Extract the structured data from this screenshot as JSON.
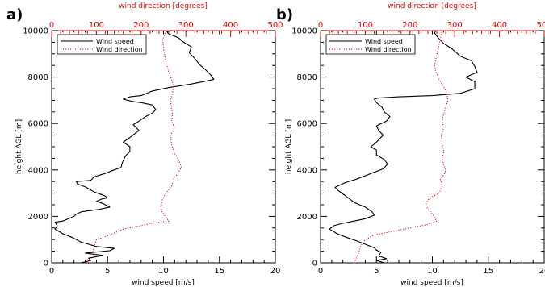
{
  "colors": {
    "speed": "#000000",
    "direction": "#e00000"
  },
  "chart_data": [
    {
      "type": "line",
      "panel_label": "a)",
      "xlabel": "wind speed [m/s]",
      "ylabel": "height AGL [m]",
      "top_xlabel": "wind direction [degrees]",
      "xlim": [
        0,
        20
      ],
      "ylim": [
        0,
        10000
      ],
      "top_xlim": [
        0,
        500
      ],
      "x_ticks": [
        "0",
        "5",
        "10",
        "15",
        "20"
      ],
      "y_ticks": [
        "0",
        "2000",
        "4000",
        "6000",
        "8000",
        "10000"
      ],
      "top_ticks": [
        "0",
        "100",
        "200",
        "300",
        "400",
        "500"
      ],
      "legend": {
        "position": "top-left",
        "entries": [
          "Wind speed",
          "Wind direction"
        ]
      },
      "series": [
        {
          "name": "Wind speed",
          "style": "solid",
          "axis": "bottom",
          "points": [
            [
              2.6,
              0
            ],
            [
              3.5,
              100
            ],
            [
              3.3,
              200
            ],
            [
              4.6,
              320
            ],
            [
              3.0,
              420
            ],
            [
              5.2,
              520
            ],
            [
              5.6,
              620
            ],
            [
              4.0,
              700
            ],
            [
              3.3,
              800
            ],
            [
              2.6,
              900
            ],
            [
              2.2,
              1000
            ],
            [
              1.8,
              1100
            ],
            [
              1.0,
              1250
            ],
            [
              0.3,
              1450
            ],
            [
              0.5,
              1600
            ],
            [
              0.3,
              1750
            ],
            [
              1.0,
              1800
            ],
            [
              1.5,
              1900
            ],
            [
              2.0,
              2000
            ],
            [
              2.2,
              2100
            ],
            [
              2.7,
              2200
            ],
            [
              4.2,
              2300
            ],
            [
              5.2,
              2400
            ],
            [
              4.6,
              2550
            ],
            [
              4.0,
              2650
            ],
            [
              4.5,
              2750
            ],
            [
              5.0,
              2800
            ],
            [
              4.7,
              2900
            ],
            [
              3.8,
              3050
            ],
            [
              3.1,
              3250
            ],
            [
              2.3,
              3400
            ],
            [
              2.2,
              3500
            ],
            [
              3.5,
              3550
            ],
            [
              3.8,
              3700
            ],
            [
              4.8,
              3850
            ],
            [
              5.3,
              3950
            ],
            [
              6.2,
              4100
            ],
            [
              6.3,
              4300
            ],
            [
              6.5,
              4500
            ],
            [
              6.6,
              4600
            ],
            [
              7.0,
              4800
            ],
            [
              7.0,
              5000
            ],
            [
              6.4,
              5200
            ],
            [
              7.0,
              5400
            ],
            [
              7.4,
              5550
            ],
            [
              7.8,
              5700
            ],
            [
              7.3,
              5950
            ],
            [
              7.8,
              6100
            ],
            [
              8.4,
              6300
            ],
            [
              9.0,
              6450
            ],
            [
              9.3,
              6600
            ],
            [
              9.0,
              6800
            ],
            [
              8.0,
              6900
            ],
            [
              7.2,
              6950
            ],
            [
              6.4,
              7050
            ],
            [
              7.0,
              7150
            ],
            [
              8.0,
              7200
            ],
            [
              9.0,
              7400
            ],
            [
              10.5,
              7550
            ],
            [
              12.5,
              7700
            ],
            [
              13.5,
              7800
            ],
            [
              14.5,
              7900
            ],
            [
              14.2,
              8100
            ],
            [
              13.8,
              8300
            ],
            [
              13.2,
              8550
            ],
            [
              12.8,
              8800
            ],
            [
              12.3,
              9050
            ],
            [
              12.5,
              9300
            ],
            [
              11.8,
              9500
            ],
            [
              11.3,
              9700
            ],
            [
              10.5,
              9850
            ],
            [
              10.3,
              9950
            ],
            [
              10.8,
              10000
            ]
          ]
        },
        {
          "name": "Wind direction",
          "style": "dotted",
          "axis": "top",
          "points": [
            [
              80,
              0
            ],
            [
              85,
              150
            ],
            [
              88,
              300
            ],
            [
              92,
              500
            ],
            [
              95,
              700
            ],
            [
              100,
              1000
            ],
            [
              130,
              1200
            ],
            [
              160,
              1450
            ],
            [
              200,
              1600
            ],
            [
              225,
              1700
            ],
            [
              262,
              1800
            ],
            [
              258,
              1900
            ],
            [
              252,
              2050
            ],
            [
              246,
              2200
            ],
            [
              244,
              2400
            ],
            [
              246,
              2550
            ],
            [
              248,
              2750
            ],
            [
              255,
              3000
            ],
            [
              268,
              3300
            ],
            [
              272,
              3600
            ],
            [
              282,
              3850
            ],
            [
              290,
              4100
            ],
            [
              285,
              4400
            ],
            [
              275,
              4700
            ],
            [
              268,
              5100
            ],
            [
              265,
              5500
            ],
            [
              275,
              5800
            ],
            [
              268,
              6100
            ],
            [
              270,
              6400
            ],
            [
              268,
              6700
            ],
            [
              265,
              7000
            ],
            [
              270,
              7300
            ],
            [
              272,
              7600
            ],
            [
              268,
              7900
            ],
            [
              262,
              8200
            ],
            [
              256,
              8600
            ],
            [
              252,
              9000
            ],
            [
              250,
              9300
            ],
            [
              248,
              9600
            ],
            [
              252,
              9800
            ],
            [
              255,
              10000
            ]
          ]
        }
      ]
    },
    {
      "type": "line",
      "panel_label": "b)",
      "xlabel": "wind speed [m/s]",
      "ylabel": "height AGL [m]",
      "top_xlabel": "wind direction [degrees]",
      "xlim": [
        0,
        20
      ],
      "ylim": [
        0,
        10000
      ],
      "top_xlim": [
        0,
        500
      ],
      "x_ticks": [
        "0",
        "5",
        "10",
        "15",
        "20"
      ],
      "y_ticks": [
        "0",
        "2000",
        "4000",
        "6000",
        "8000",
        "10000"
      ],
      "top_ticks": [
        "0",
        "100",
        "200",
        "300",
        "400",
        "500"
      ],
      "legend": {
        "position": "top-left",
        "entries": [
          "Wind speed",
          "Wind direction"
        ]
      },
      "series": [
        {
          "name": "Wind speed",
          "style": "solid",
          "axis": "bottom",
          "points": [
            [
              5.7,
              0
            ],
            [
              5.0,
              100
            ],
            [
              5.9,
              180
            ],
            [
              5.2,
              300
            ],
            [
              5.4,
              450
            ],
            [
              5.0,
              550
            ],
            [
              4.8,
              650
            ],
            [
              4.0,
              800
            ],
            [
              3.2,
              950
            ],
            [
              2.3,
              1100
            ],
            [
              1.5,
              1250
            ],
            [
              0.8,
              1450
            ],
            [
              1.2,
              1600
            ],
            [
              2.0,
              1700
            ],
            [
              3.0,
              1800
            ],
            [
              4.0,
              1900
            ],
            [
              4.8,
              2050
            ],
            [
              4.6,
              2200
            ],
            [
              4.0,
              2400
            ],
            [
              3.0,
              2600
            ],
            [
              2.2,
              2900
            ],
            [
              1.6,
              3100
            ],
            [
              1.3,
              3250
            ],
            [
              2.2,
              3450
            ],
            [
              3.2,
              3600
            ],
            [
              4.0,
              3750
            ],
            [
              4.8,
              3900
            ],
            [
              5.6,
              4050
            ],
            [
              6.0,
              4250
            ],
            [
              5.7,
              4450
            ],
            [
              5.0,
              4650
            ],
            [
              5.0,
              4850
            ],
            [
              4.5,
              5000
            ],
            [
              4.9,
              5150
            ],
            [
              5.3,
              5350
            ],
            [
              5.6,
              5500
            ],
            [
              5.2,
              5700
            ],
            [
              5.0,
              5900
            ],
            [
              5.9,
              6100
            ],
            [
              6.2,
              6300
            ],
            [
              5.7,
              6500
            ],
            [
              5.5,
              6700
            ],
            [
              5.0,
              6900
            ],
            [
              4.8,
              7050
            ],
            [
              5.2,
              7100
            ],
            [
              7.0,
              7150
            ],
            [
              10.0,
              7200
            ],
            [
              12.5,
              7300
            ],
            [
              13.8,
              7500
            ],
            [
              13.8,
              7800
            ],
            [
              13.0,
              8000
            ],
            [
              14.0,
              8200
            ],
            [
              13.8,
              8450
            ],
            [
              13.5,
              8700
            ],
            [
              12.5,
              8900
            ],
            [
              11.8,
              9200
            ],
            [
              11.0,
              9450
            ],
            [
              10.5,
              9700
            ],
            [
              10.2,
              9900
            ],
            [
              10.3,
              10000
            ]
          ]
        },
        {
          "name": "Wind direction",
          "style": "dotted",
          "axis": "top",
          "points": [
            [
              75,
              0
            ],
            [
              80,
              200
            ],
            [
              85,
              400
            ],
            [
              88,
              600
            ],
            [
              92,
              800
            ],
            [
              100,
              1000
            ],
            [
              120,
              1200
            ],
            [
              160,
              1350
            ],
            [
              200,
              1500
            ],
            [
              240,
              1650
            ],
            [
              260,
              1800
            ],
            [
              255,
              1950
            ],
            [
              250,
              2100
            ],
            [
              240,
              2300
            ],
            [
              235,
              2500
            ],
            [
              240,
              2700
            ],
            [
              250,
              2850
            ],
            [
              265,
              3000
            ],
            [
              272,
              3300
            ],
            [
              268,
              3600
            ],
            [
              276,
              3800
            ],
            [
              280,
              4000
            ],
            [
              275,
              4200
            ],
            [
              272,
              4500
            ],
            [
              276,
              4800
            ],
            [
              272,
              5100
            ],
            [
              270,
              5500
            ],
            [
              275,
              5800
            ],
            [
              272,
              6100
            ],
            [
              275,
              6400
            ],
            [
              280,
              6700
            ],
            [
              285,
              7000
            ],
            [
              282,
              7300
            ],
            [
              275,
              7600
            ],
            [
              265,
              7900
            ],
            [
              258,
              8200
            ],
            [
              255,
              8500
            ],
            [
              258,
              8800
            ],
            [
              262,
              9100
            ],
            [
              265,
              9400
            ],
            [
              268,
              9700
            ],
            [
              272,
              10000
            ]
          ]
        }
      ]
    }
  ]
}
